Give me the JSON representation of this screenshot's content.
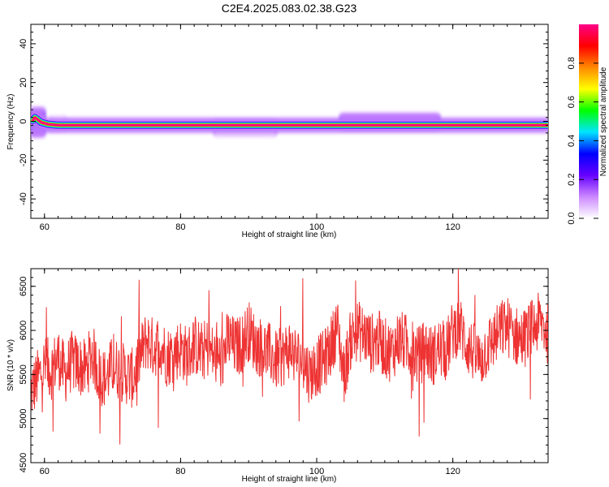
{
  "title": "C2E4.2025.083.02.38.G23",
  "chart_data": [
    {
      "type": "heatmap",
      "xlabel": "Height of straight line (km)",
      "ylabel": "Frequency (Hz)",
      "xlim": [
        58,
        134
      ],
      "ylim": [
        -50,
        50
      ],
      "x_ticks": [
        60,
        80,
        100,
        120
      ],
      "y_ticks": [
        -40,
        -20,
        0,
        20,
        40
      ],
      "colorbar": {
        "label": "Normalized spectral amplitude",
        "range": [
          0,
          1
        ],
        "ticks": [
          0.0,
          0.2,
          0.4,
          0.6,
          0.8
        ],
        "colors": [
          "#ffffff",
          "#cc88ff",
          "#6600ff",
          "#0000ff",
          "#00e5ff",
          "#00ff00",
          "#ffff00",
          "#ff8800",
          "#ff0000",
          "#ff0088"
        ]
      },
      "peak_line": [
        {
          "x": 58.3,
          "y": 0.5
        },
        {
          "x": 58.6,
          "y": 2
        },
        {
          "x": 59.5,
          "y": -0.5
        },
        {
          "x": 60.5,
          "y": -1.5
        },
        {
          "x": 62,
          "y": -2
        },
        {
          "x": 134,
          "y": -2
        }
      ],
      "spread_regions": [
        {
          "x_start": 58,
          "x_end": 60,
          "y_low": -6,
          "y_high": 5,
          "amplitude": 0.3
        },
        {
          "x_start": 61,
          "x_end": 63,
          "y_low": -4,
          "y_high": 1.5,
          "amplitude": 0.12
        },
        {
          "x_start": 85,
          "x_end": 94,
          "y_low": -6,
          "y_high": -1,
          "amplitude": 0.25
        },
        {
          "x_start": 103.5,
          "x_end": 118,
          "y_low": -2,
          "y_high": 2,
          "amplitude": 0.28
        },
        {
          "x_start": 58,
          "x_end": 134,
          "y_low": -3.5,
          "y_high": -0.5,
          "amplitude": 0.4
        }
      ]
    },
    {
      "type": "line",
      "xlabel": "Height of straight line (km)",
      "ylabel": "SNR (10 * v/v)",
      "xlim": [
        58,
        134
      ],
      "ylim": [
        4500,
        6700
      ],
      "x_ticks": [
        60,
        80,
        100,
        120
      ],
      "y_ticks": [
        4500,
        5000,
        5500,
        6000,
        6500
      ],
      "color": "#ee3333",
      "series": [
        {
          "x": [
            58,
            59,
            60,
            61,
            62,
            63,
            64,
            65,
            66,
            67,
            68,
            69,
            70,
            71,
            72,
            73,
            74,
            75,
            76,
            77,
            78,
            79,
            80,
            81,
            82,
            83,
            84,
            85,
            86,
            87,
            88,
            89,
            90,
            91,
            92,
            93,
            94,
            95,
            96,
            97,
            98,
            99,
            100,
            101,
            102,
            103,
            104,
            105,
            106,
            107,
            108,
            109,
            110,
            111,
            112,
            113,
            114,
            115,
            116,
            117,
            118,
            119,
            120,
            121,
            122,
            123,
            124,
            125,
            126,
            127,
            128,
            129,
            130,
            131,
            132,
            133,
            134
          ],
          "y": [
            5300,
            5450,
            5600,
            5550,
            5700,
            5500,
            5650,
            5600,
            5550,
            5750,
            5500,
            5450,
            5600,
            5550,
            5500,
            5450,
            5700,
            5900,
            5800,
            5850,
            5700,
            5750,
            5800,
            5700,
            5850,
            5750,
            5800,
            5700,
            5650,
            5900,
            5800,
            5850,
            6000,
            5850,
            5800,
            5750,
            5650,
            5700,
            5800,
            5700,
            5650,
            5500,
            5600,
            5650,
            5800,
            6050,
            5500,
            5900,
            6000,
            5950,
            5850,
            5900,
            5800,
            5750,
            5900,
            5850,
            5800,
            5700,
            5800,
            5700,
            5800,
            5750,
            6000,
            6050,
            5850,
            5750,
            5650,
            5800,
            5900,
            6000,
            6050,
            5950,
            5900,
            5950,
            6050,
            6100,
            5950
          ]
        }
      ]
    }
  ]
}
